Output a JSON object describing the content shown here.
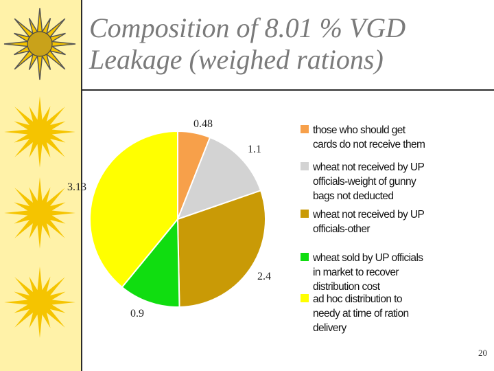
{
  "slide": {
    "title_lines": [
      "Composition of 8.01 % VGD",
      "Leakage (weighed rations)"
    ],
    "page_number": "20"
  },
  "colors": {
    "left_band": "#fff2a8",
    "sun": "#f5c400",
    "title": "#7a7a7a"
  },
  "chart_data": {
    "type": "pie",
    "title": "",
    "start": "top",
    "direction": "clockwise",
    "slices": [
      {
        "label_lines": [
          "those who should get",
          "cards do not receive them"
        ],
        "value": 0.48,
        "value_label": "0.48",
        "color": "#f7a04a"
      },
      {
        "label_lines": [
          "wheat not received by UP",
          "officials-weight of gunny",
          "bags not deducted"
        ],
        "value": 1.1,
        "value_label": "1.1",
        "color": "#d3d3d3"
      },
      {
        "label_lines": [
          "wheat not received by UP",
          "officials-other"
        ],
        "value": 2.4,
        "value_label": "2.4",
        "color": "#c99a06"
      },
      {
        "label_lines": [
          "wheat sold by UP officials",
          "in market to recover",
          "distribution cost"
        ],
        "value": 0.9,
        "value_label": "0.9",
        "color": "#10dd10"
      },
      {
        "label_lines": [
          "ad hoc distribution to",
          "needy at time of ration",
          "delivery"
        ],
        "value": 3.13,
        "value_label": "3.13",
        "color": "#ffff00"
      }
    ],
    "legend_position": "right"
  }
}
